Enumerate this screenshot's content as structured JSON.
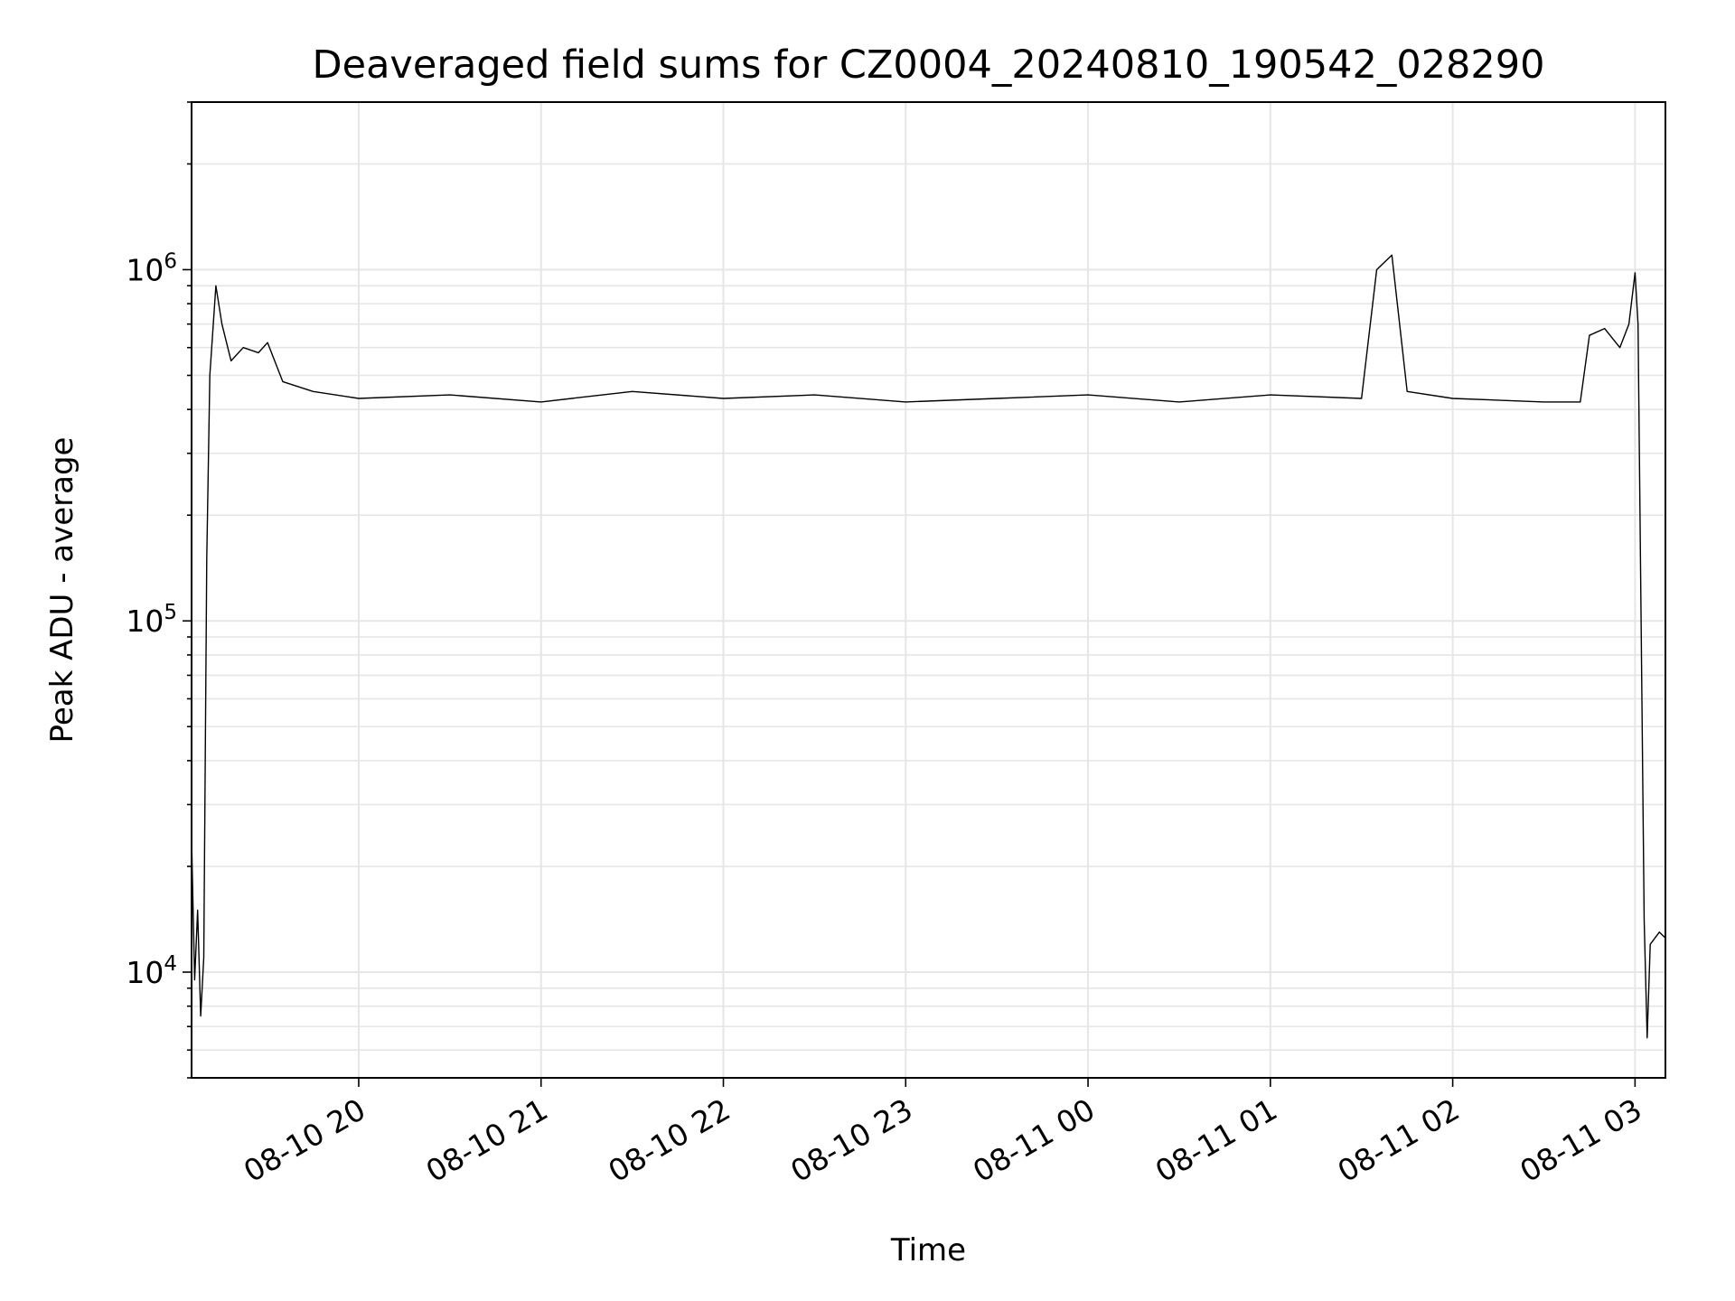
{
  "chart_data": {
    "type": "line",
    "title": "Deaveraged field sums for CZ0004_20240810_190542_028290",
    "xlabel": "Time",
    "ylabel": "Peak ADU - average",
    "y_scale": "log",
    "ylim": [
      5000,
      3000000
    ],
    "y_major_ticks": [
      10000,
      100000,
      1000000
    ],
    "y_major_tick_labels": [
      {
        "base": "10",
        "exp": "4"
      },
      {
        "base": "10",
        "exp": "5"
      },
      {
        "base": "10",
        "exp": "6"
      }
    ],
    "xlim": [
      "2024-08-10 19:05",
      "2024-08-11 03:10"
    ],
    "x_ticks": [
      "2024-08-10 20:00",
      "2024-08-10 21:00",
      "2024-08-10 22:00",
      "2024-08-10 23:00",
      "2024-08-11 00:00",
      "2024-08-11 01:00",
      "2024-08-11 02:00",
      "2024-08-11 03:00"
    ],
    "x_tick_labels": [
      "08-10 20",
      "08-10 21",
      "08-10 22",
      "08-10 23",
      "08-11 00",
      "08-11 01",
      "08-11 02",
      "08-11 03"
    ],
    "grid": true,
    "line_color": "#000000",
    "grid_color": "#e6e6e6",
    "series": [
      {
        "points": [
          [
            "2024-08-10 19:05",
            24000
          ],
          [
            "2024-08-10 19:06",
            9500
          ],
          [
            "2024-08-10 19:07",
            15000
          ],
          [
            "2024-08-10 19:08",
            7500
          ],
          [
            "2024-08-10 19:09",
            11000
          ],
          [
            "2024-08-10 19:10",
            150000
          ],
          [
            "2024-08-10 19:11",
            500000
          ],
          [
            "2024-08-10 19:13",
            900000
          ],
          [
            "2024-08-10 19:15",
            700000
          ],
          [
            "2024-08-10 19:18",
            550000
          ],
          [
            "2024-08-10 19:22",
            600000
          ],
          [
            "2024-08-10 19:27",
            580000
          ],
          [
            "2024-08-10 19:30",
            620000
          ],
          [
            "2024-08-10 19:35",
            480000
          ],
          [
            "2024-08-10 19:45",
            450000
          ],
          [
            "2024-08-10 20:00",
            430000
          ],
          [
            "2024-08-10 20:30",
            440000
          ],
          [
            "2024-08-10 21:00",
            420000
          ],
          [
            "2024-08-10 21:30",
            450000
          ],
          [
            "2024-08-10 22:00",
            430000
          ],
          [
            "2024-08-10 22:30",
            440000
          ],
          [
            "2024-08-10 23:00",
            420000
          ],
          [
            "2024-08-10 23:30",
            430000
          ],
          [
            "2024-08-11 00:00",
            440000
          ],
          [
            "2024-08-11 00:30",
            420000
          ],
          [
            "2024-08-11 01:00",
            440000
          ],
          [
            "2024-08-11 01:30",
            430000
          ],
          [
            "2024-08-11 01:35",
            1000000
          ],
          [
            "2024-08-11 01:40",
            1100000
          ],
          [
            "2024-08-11 01:45",
            450000
          ],
          [
            "2024-08-11 02:00",
            430000
          ],
          [
            "2024-08-11 02:30",
            420000
          ],
          [
            "2024-08-11 02:42",
            420000
          ],
          [
            "2024-08-11 02:45",
            650000
          ],
          [
            "2024-08-11 02:50",
            680000
          ],
          [
            "2024-08-11 02:55",
            600000
          ],
          [
            "2024-08-11 02:58",
            700000
          ],
          [
            "2024-08-11 03:00",
            980000
          ],
          [
            "2024-08-11 03:01",
            700000
          ],
          [
            "2024-08-11 03:02",
            100000
          ],
          [
            "2024-08-11 03:03",
            14000
          ],
          [
            "2024-08-11 03:04",
            6500
          ],
          [
            "2024-08-11 03:05",
            12000
          ],
          [
            "2024-08-11 03:08",
            13000
          ],
          [
            "2024-08-11 03:10",
            12500
          ]
        ]
      }
    ]
  }
}
